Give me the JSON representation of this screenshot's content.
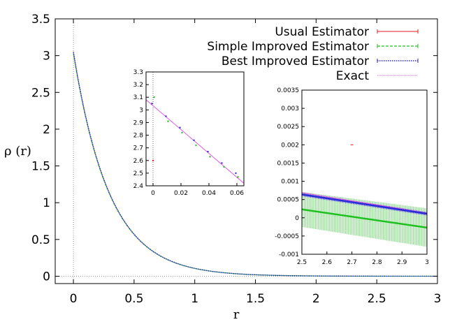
{
  "chart_data": [
    {
      "type": "line",
      "xlabel": "r",
      "ylabel": "ρ (r)",
      "xlim": [
        -0.15,
        3.0
      ],
      "ylim": [
        -0.1,
        3.5
      ],
      "xticks": [
        0,
        0.5,
        1,
        1.5,
        2,
        2.5,
        3
      ],
      "yticks": [
        0,
        0.5,
        1,
        1.5,
        2,
        2.5,
        3,
        3.5
      ],
      "xtick_labels": [
        "0",
        "0.5",
        "1",
        "1.5",
        "2",
        "2.5",
        "3"
      ],
      "ytick_labels": [
        "0",
        "0.5",
        "1",
        "1.5",
        "2",
        "2.5",
        "3",
        "3.5"
      ],
      "reference_lines": {
        "x": 0,
        "y": 0
      },
      "legend_position": "top-right",
      "series": [
        {
          "name": "Usual Estimator",
          "color": "#e41a1c",
          "style": "errorbars",
          "x": [
            0,
            0.1,
            0.2,
            0.3,
            0.4,
            0.5,
            0.6,
            0.7,
            0.8,
            0.9,
            1.0,
            1.1,
            1.2,
            1.3,
            1.4,
            1.5,
            1.6
          ],
          "y": [
            2.62,
            2.1,
            1.5,
            1.09,
            0.78,
            0.55,
            0.38,
            0.31,
            0.2,
            0.14,
            0.1,
            0.07,
            0.06,
            0.04,
            0.03,
            0.02,
            0.02
          ],
          "err": [
            0.06,
            0.04,
            0.04,
            0.03,
            0.03,
            0.02,
            0.03,
            0.02,
            0.02,
            0.02,
            0.01,
            0.01,
            0.01,
            0.01,
            0.01,
            0.01,
            0.01
          ]
        },
        {
          "name": "Simple Improved Estimator",
          "color": "#1fbf1f",
          "style": "dashed-line",
          "err_peak": 0.22
        },
        {
          "name": "Best Improved Estimator",
          "color": "#2a2ad6",
          "style": "dotted-line",
          "err_peak": 0.05
        },
        {
          "name": "Exact",
          "color": "#e056e0",
          "style": "line",
          "function": "3.05 * exp(-3.35 * r)"
        }
      ]
    },
    {
      "type": "line",
      "xlim": [
        -0.005,
        0.065
      ],
      "ylim": [
        2.4,
        3.3
      ],
      "xticks": [
        0,
        0.02,
        0.04,
        0.06
      ],
      "yticks": [
        2.4,
        2.5,
        2.6,
        2.7,
        2.8,
        2.9,
        3.0,
        3.1,
        3.2,
        3.3
      ],
      "xtick_labels": [
        "0",
        "0.02",
        "0.04",
        "0.06"
      ],
      "ytick_labels": [
        "2.4",
        "2.5",
        "2.6",
        "2.7",
        "2.8",
        "2.9",
        "3",
        "3.1",
        "3.2",
        "3.3"
      ],
      "reference_lines": {
        "x": 0
      },
      "exact": {
        "x": [
          -0.005,
          0.065
        ],
        "y": [
          3.08,
          2.42
        ]
      },
      "series": [
        {
          "name": "Usual Estimator",
          "color": "#e41a1c",
          "x": [
            0
          ],
          "y": [
            2.6
          ],
          "err": [
            0.06
          ]
        },
        {
          "name": "Simple Improved Estimator",
          "color": "#1fbf1f",
          "x": [
            0,
            0.01,
            0.02,
            0.03,
            0.04,
            0.05,
            0.06
          ],
          "y": [
            3.1,
            2.91,
            2.82,
            2.72,
            2.63,
            2.55,
            2.47
          ],
          "err": [
            0.12,
            0.04,
            0.03,
            0.03,
            0.02,
            0.02,
            0.02
          ]
        },
        {
          "name": "Best Improved Estimator",
          "color": "#2a2ad6",
          "x": [
            0,
            0.01,
            0.02,
            0.03,
            0.04,
            0.05,
            0.06
          ],
          "y": [
            3.05,
            2.95,
            2.86,
            2.76,
            2.67,
            2.58,
            2.5
          ],
          "err": [
            0.02,
            0.015,
            0.015,
            0.015,
            0.012,
            0.012,
            0.012
          ]
        }
      ]
    },
    {
      "type": "line",
      "xlim": [
        2.5,
        3.0
      ],
      "ylim": [
        -0.001,
        0.0035
      ],
      "xticks": [
        2.5,
        2.6,
        2.7,
        2.8,
        2.9,
        3.0
      ],
      "yticks": [
        -0.001,
        -0.0005,
        0,
        0.0005,
        0.001,
        0.0015,
        0.002,
        0.0025,
        0.003,
        0.0035
      ],
      "xtick_labels": [
        "2.5",
        "2.6",
        "2.7",
        "2.8",
        "2.9",
        "3"
      ],
      "ytick_labels": [
        "-0.001",
        "-0.0005",
        "0",
        "0.0005",
        "0.001",
        "0.0015",
        "0.002",
        "0.0025",
        "0.003",
        "0.0035"
      ],
      "series": [
        {
          "name": "Usual Estimator",
          "color": "#e41a1c",
          "x": [
            2.7
          ],
          "y": [
            0.002
          ],
          "err": [
            0.00145
          ]
        },
        {
          "name": "Simple Improved Estimator",
          "color": "#1fbf1f",
          "x": [
            2.5,
            3.0
          ],
          "y": [
            0.00023,
            -0.00027
          ],
          "err_start": 0.00048
        },
        {
          "name": "Best Improved Estimator",
          "color": "#2a2ad6",
          "x": [
            2.5,
            3.0
          ],
          "y": [
            0.00064,
            0.00011
          ],
          "err": 5e-05
        },
        {
          "name": "Exact",
          "color": "#e056e0",
          "x": [
            2.5,
            3.0
          ],
          "y": [
            0.00069,
            0.00013
          ]
        }
      ]
    }
  ]
}
